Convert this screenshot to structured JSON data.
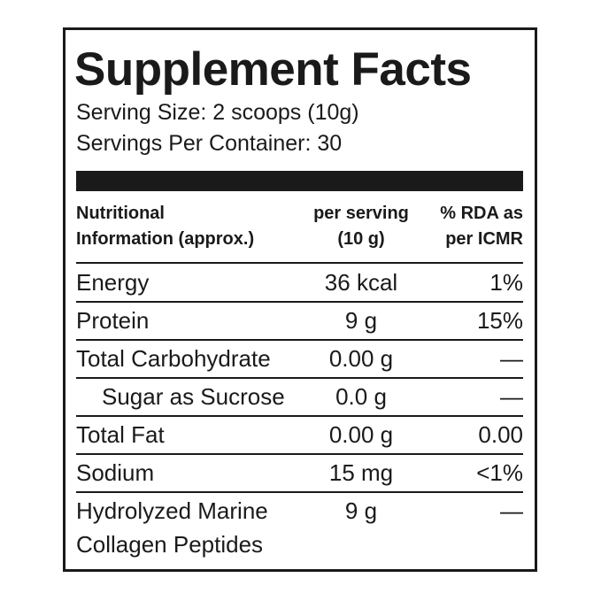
{
  "header": {
    "title": "Supplement Facts",
    "serving_size": "Serving Size: 2 scoops  (10g)",
    "servings_per_container": "Servings Per Container: 30"
  },
  "table": {
    "columns": [
      [
        "Nutritional",
        "Information (approx.)"
      ],
      [
        "per serving",
        "(10 g)"
      ],
      [
        "% RDA as",
        "per ICMR"
      ]
    ],
    "rows": [
      [
        [
          "Energy"
        ],
        "36 kcal",
        "1%"
      ],
      [
        [
          "Protein"
        ],
        "9 g",
        "15%"
      ],
      [
        [
          "Total Carbohydrate"
        ],
        "0.00 g",
        "—"
      ],
      [
        [
          "Sugar as Sucrose"
        ],
        "0.0 g",
        "—"
      ],
      [
        [
          "Total Fat"
        ],
        "0.00 g",
        "0.00"
      ],
      [
        [
          "Sodium"
        ],
        "15 mg",
        "<1%"
      ],
      [
        [
          "Hydrolyzed Marine",
          "Collagen Peptides"
        ],
        "9 g",
        "—"
      ]
    ]
  }
}
